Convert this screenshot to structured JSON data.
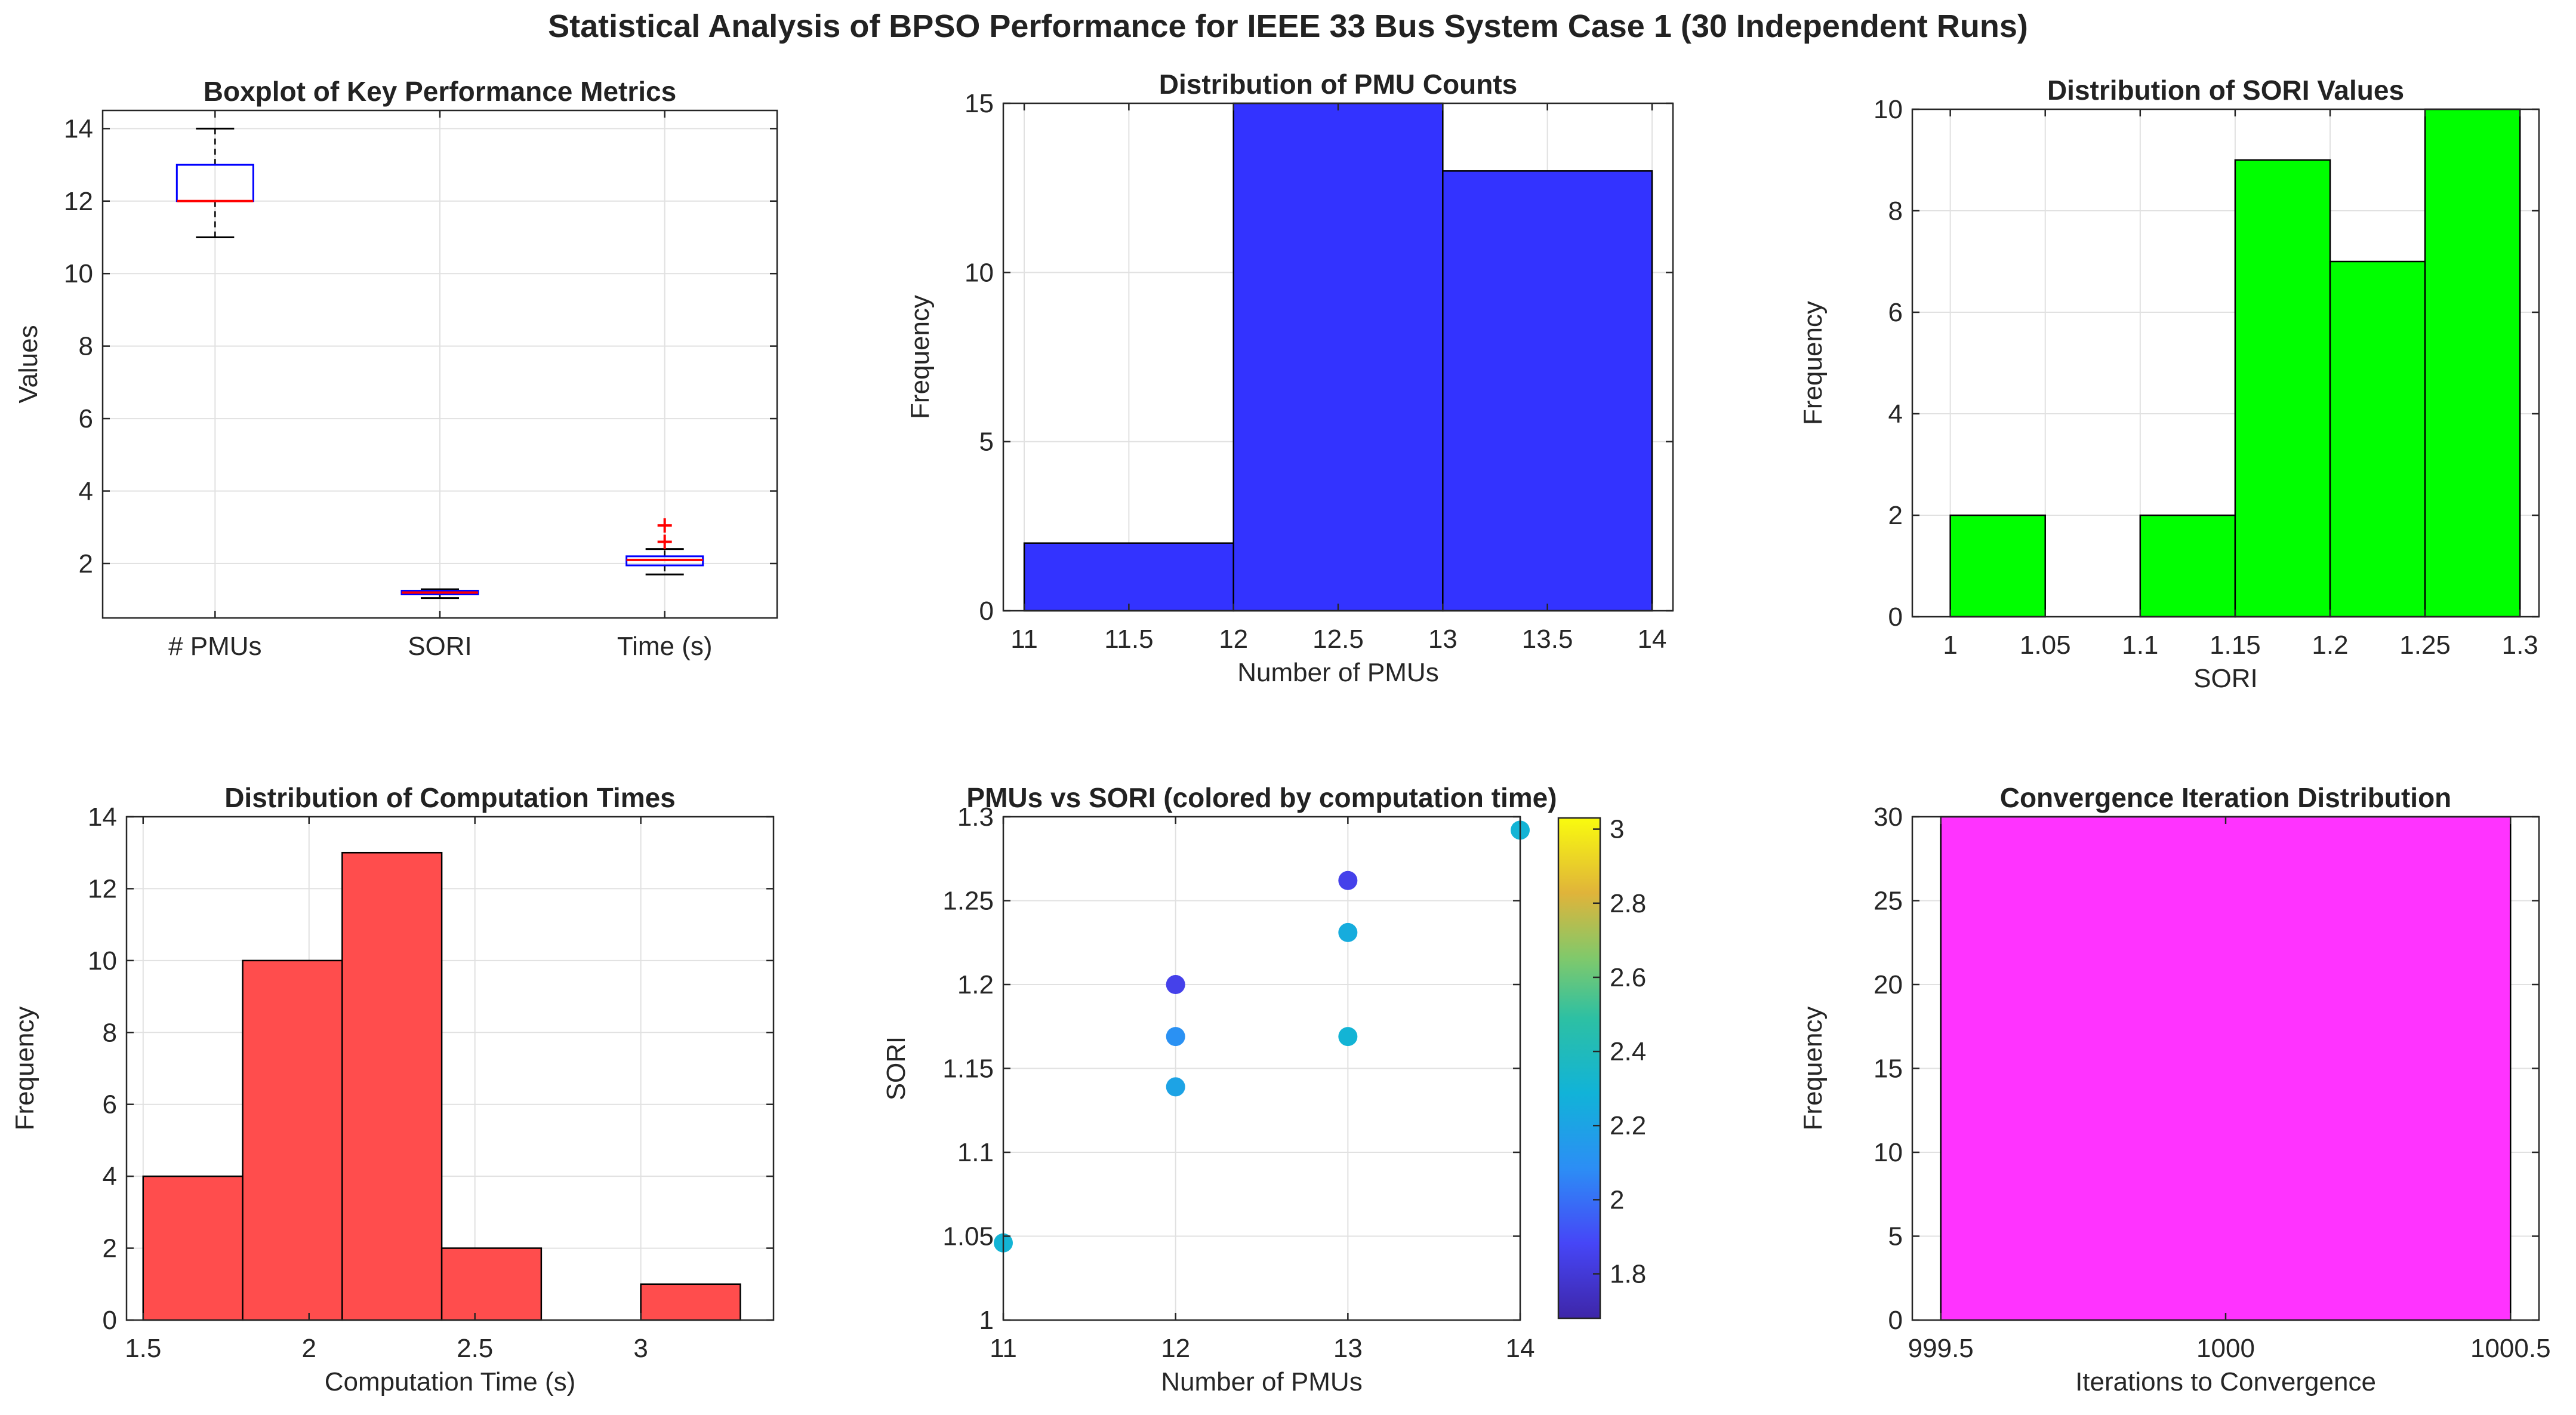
{
  "figure": {
    "title": "Statistical Analysis of BPSO Performance for IEEE 33 Bus System Case 1 (30 Independent Runs)"
  },
  "chart_data": [
    {
      "type": "box",
      "title": "Boxplot of Key Performance Metrics",
      "xlabel": "",
      "ylabel": "Values",
      "categories": [
        "# PMUs",
        "SORI",
        "Time (s)"
      ],
      "ylim": [
        0.5,
        14.5
      ],
      "yticks": [
        "2",
        "4",
        "6",
        "8",
        "10",
        "12",
        "14"
      ],
      "boxes": [
        {
          "min": 11,
          "q1": 12,
          "median": 12,
          "q3": 13,
          "max": 14,
          "outliers": []
        },
        {
          "min": 1.05,
          "q1": 1.15,
          "median": 1.2,
          "q3": 1.25,
          "max": 1.29,
          "outliers": []
        },
        {
          "min": 1.7,
          "q1": 1.95,
          "median": 2.1,
          "q3": 2.2,
          "max": 2.4,
          "outliers": [
            2.6,
            3.05
          ]
        }
      ],
      "colors": {
        "box": "#0000ff",
        "median": "#ff0000",
        "whisker": "#000000",
        "outlier": "#ff0000"
      },
      "grid": true
    },
    {
      "type": "bar",
      "title": "Distribution of PMU Counts",
      "xlabel": "Number of PMUs",
      "ylabel": "Frequency",
      "bins": [
        [
          11,
          12
        ],
        [
          12,
          13
        ],
        [
          13,
          14
        ]
      ],
      "values": [
        2,
        15,
        13
      ],
      "xlim": [
        10.9,
        14.1
      ],
      "ylim": [
        0,
        15
      ],
      "xticks": [
        "11",
        "11.5",
        "12",
        "12.5",
        "13",
        "13.5",
        "14"
      ],
      "yticks": [
        "0",
        "5",
        "10",
        "15"
      ],
      "color": "#3333ff",
      "grid": true
    },
    {
      "type": "bar",
      "title": "Distribution of SORI Values",
      "xlabel": "SORI",
      "ylabel": "Frequency",
      "bins": [
        [
          1,
          1.05
        ],
        [
          1.05,
          1.1
        ],
        [
          1.1,
          1.15
        ],
        [
          1.15,
          1.2
        ],
        [
          1.2,
          1.25
        ],
        [
          1.25,
          1.3
        ]
      ],
      "values": [
        2,
        0,
        2,
        9,
        7,
        10
      ],
      "xlim": [
        0.98,
        1.31
      ],
      "ylim": [
        0,
        10
      ],
      "xticks": [
        "1",
        "1.05",
        "1.1",
        "1.15",
        "1.2",
        "1.25",
        "1.3"
      ],
      "yticks": [
        "0",
        "2",
        "4",
        "6",
        "8",
        "10"
      ],
      "color": "#00ff00",
      "grid": true
    },
    {
      "type": "bar",
      "title": "Distribution of Computation Times",
      "xlabel": "Computation Time (s)",
      "ylabel": "Frequency",
      "bins": [
        [
          1.5,
          1.8
        ],
        [
          1.8,
          2.1
        ],
        [
          2.1,
          2.4
        ],
        [
          2.4,
          2.7
        ],
        [
          2.7,
          3.0
        ],
        [
          3.0,
          3.3
        ]
      ],
      "values": [
        4,
        10,
        13,
        2,
        0,
        1
      ],
      "xlim": [
        1.45,
        3.4
      ],
      "ylim": [
        0,
        14
      ],
      "xticks": [
        "1.5",
        "2",
        "2.5",
        "3"
      ],
      "yticks": [
        "0",
        "2",
        "4",
        "6",
        "8",
        "10",
        "12",
        "14"
      ],
      "color": "#ff4d4d",
      "grid": true
    },
    {
      "type": "scatter",
      "title": "PMUs vs SORI (colored by computation time)",
      "xlabel": "Number of PMUs",
      "ylabel": "SORI",
      "points": [
        {
          "x": 11,
          "y": 1.046,
          "c": 2.3
        },
        {
          "x": 12,
          "y": 1.2,
          "c": 1.85
        },
        {
          "x": 12,
          "y": 1.169,
          "c": 2.1
        },
        {
          "x": 12,
          "y": 1.139,
          "c": 2.2
        },
        {
          "x": 13,
          "y": 1.262,
          "c": 1.85
        },
        {
          "x": 13,
          "y": 1.231,
          "c": 2.25
        },
        {
          "x": 13,
          "y": 1.169,
          "c": 2.3
        },
        {
          "x": 14,
          "y": 1.292,
          "c": 2.3
        }
      ],
      "xlim": [
        11,
        14
      ],
      "ylim": [
        1,
        1.3
      ],
      "xticks": [
        "11",
        "12",
        "13",
        "14"
      ],
      "yticks": [
        "1",
        "1.05",
        "1.1",
        "1.15",
        "1.2",
        "1.25",
        "1.3"
      ],
      "colorbar": {
        "range": [
          1.68,
          3.03
        ],
        "ticks": [
          "1.8",
          "2",
          "2.2",
          "2.4",
          "2.6",
          "2.8",
          "3"
        ]
      },
      "grid": true
    },
    {
      "type": "bar",
      "title": "Convergence Iteration Distribution",
      "xlabel": "Iterations to Convergence",
      "ylabel": "Frequency",
      "bins": [
        [
          999.5,
          1000.5
        ]
      ],
      "values": [
        30
      ],
      "xlim": [
        999.45,
        1000.55
      ],
      "ylim": [
        0,
        30
      ],
      "xticks": [
        "999.5",
        "1000",
        "1000.5"
      ],
      "yticks": [
        "0",
        "5",
        "10",
        "15",
        "20",
        "25",
        "30"
      ],
      "color": "#ff33ff",
      "grid": true
    }
  ]
}
